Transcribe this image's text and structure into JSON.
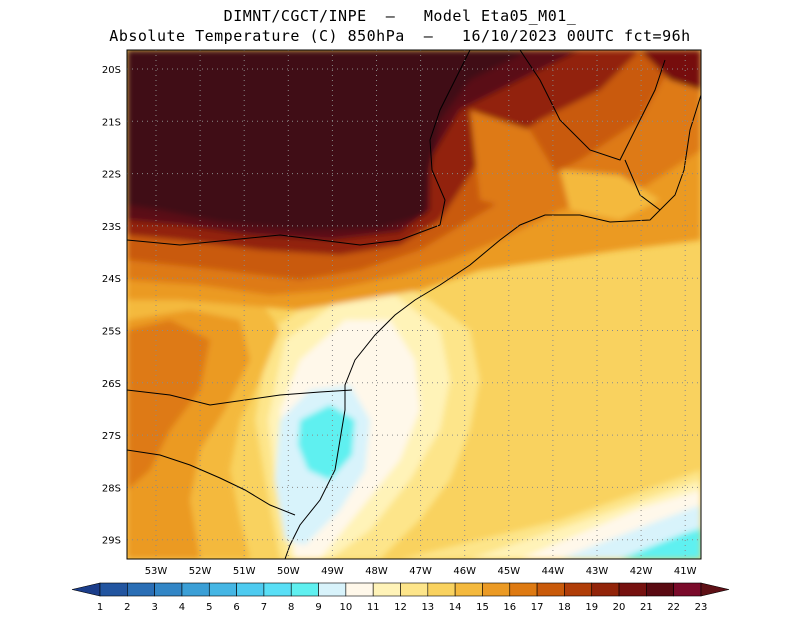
{
  "header": {
    "line1": "DIMNT/CGCT/INPE  –   Model Eta05_M01_",
    "line2": "Absolute Temperature (C) 850hPa  –   16/10/2023 00UTC fct=96h"
  },
  "map": {
    "lat_labels": [
      "20S",
      "21S",
      "22S",
      "23S",
      "24S",
      "25S",
      "26S",
      "27S",
      "28S",
      "29S"
    ],
    "lon_labels": [
      "53W",
      "52W",
      "51W",
      "50W",
      "49W",
      "48W",
      "47W",
      "46W",
      "45W",
      "44W",
      "43W",
      "42W",
      "41W"
    ],
    "grid": true
  },
  "colorbar": {
    "labels": [
      "1",
      "2",
      "3",
      "4",
      "5",
      "6",
      "7",
      "8",
      "9",
      "10",
      "11",
      "12",
      "13",
      "14",
      "15",
      "16",
      "17",
      "18",
      "19",
      "20",
      "21",
      "22",
      "23"
    ],
    "colors": [
      "#1b3d8a",
      "#2255a0",
      "#2a6eb5",
      "#3286c6",
      "#3b9fd6",
      "#45b6e4",
      "#4ecbf0",
      "#59dff6",
      "#5ff0f0",
      "#d8f3fb",
      "#fff8ea",
      "#fff3b8",
      "#fde58a",
      "#f9d25f",
      "#f4b93d",
      "#eb9a24",
      "#de7a12",
      "#c95a0a",
      "#b03d08",
      "#922409",
      "#76110f",
      "#5a0a12",
      "#7a0a2a",
      "#5e1016"
    ]
  }
}
